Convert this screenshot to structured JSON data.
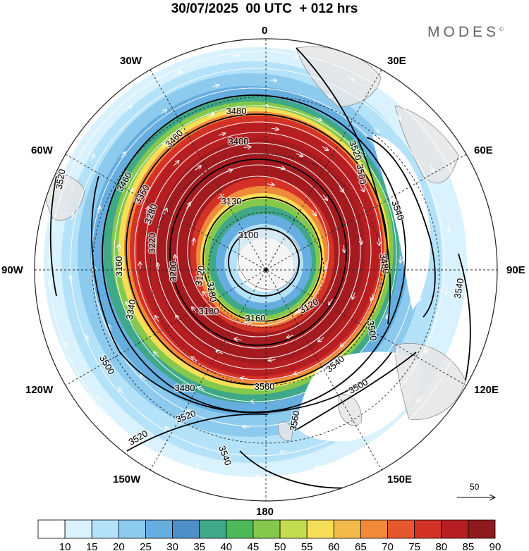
{
  "title": "30/07/2025  00 UTC  + 012 hrs",
  "brand": "MODES",
  "brand_mark": "©",
  "longitude_labels": {
    "n": "0",
    "ne": "30E",
    "ene": "60E",
    "e": "90E",
    "ese": "120E",
    "se": "150E",
    "s": "180",
    "sw": "150W",
    "wsw": "120W",
    "w": "90W",
    "wnw": "60W",
    "nw": "30W"
  },
  "reference_vector": {
    "label": "50"
  },
  "contour_labels": [
    "3480",
    "3460",
    "3460",
    "3400",
    "3520",
    "3500",
    "3540",
    "3520",
    "3130",
    "3100",
    "3120",
    "3200",
    "3160",
    "3180",
    "3160",
    "3120",
    "3480",
    "3500",
    "3540",
    "3560",
    "3560",
    "3540",
    "3520",
    "3520",
    "3480",
    "3500",
    "3540",
    "3340",
    "3180",
    "3220",
    "3280",
    "3360",
    "3500"
  ],
  "colorbar": {
    "ticks": [
      "10",
      "15",
      "20",
      "25",
      "30",
      "35",
      "40",
      "45",
      "50",
      "55",
      "60",
      "65",
      "70",
      "75",
      "80",
      "85",
      "90"
    ],
    "colors": [
      "#ffffff",
      "#d9f2fd",
      "#b4e2f9",
      "#8ccaee",
      "#66aee0",
      "#4d8fc6",
      "#3fa889",
      "#4cb95a",
      "#84c84c",
      "#c4dd4e",
      "#f6de58",
      "#f4b94b",
      "#f08a3a",
      "#e7572e",
      "#d43227",
      "#b71e22",
      "#8f1a1d"
    ]
  },
  "colors": {
    "land": "#e5e5e5",
    "coast": "#8c8c8c",
    "contour": "#000000",
    "frame": "#222222"
  }
}
